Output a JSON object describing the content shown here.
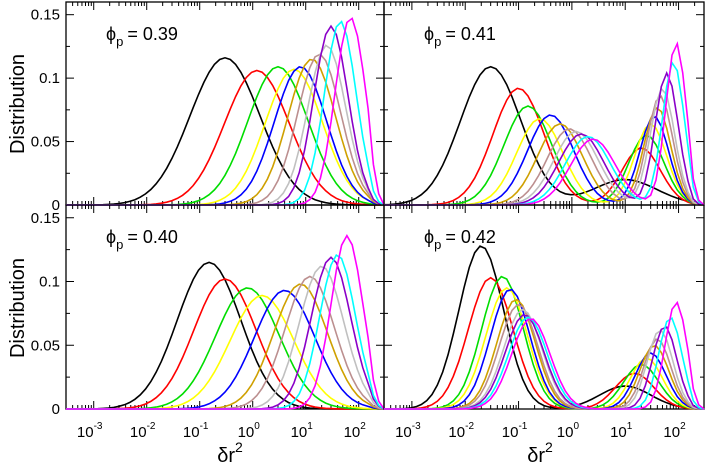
{
  "figure": {
    "ylabel": "Distribution",
    "xlabel_base": "δr",
    "xlabel_exp": "2",
    "phi_symbol": "ϕ",
    "phi_sub": "p"
  },
  "palette": {
    "black": "#000000",
    "red": "#ff0000",
    "green": "#00dd00",
    "yellow": "#ffff00",
    "blue": "#0000ff",
    "gold": "#cfa000",
    "rosy": "#bc8f8f",
    "silver": "#c0c0c0",
    "purple": "#8a00c8",
    "cyan": "#00ffff",
    "magenta": "#ff00ff"
  },
  "chart_data": [
    {
      "type": "line",
      "label_value": "= 0.39",
      "xscale": "log",
      "xlim": [
        0.0003,
        300
      ],
      "ylim": [
        0,
        0.16
      ],
      "yticks": [
        "0",
        "0.05",
        "0.1",
        "0.15"
      ],
      "xticks": [
        "-3",
        "-2",
        "-1",
        "0",
        "1",
        "2"
      ],
      "series": [
        {
          "color": "black",
          "peak_x": 0.3,
          "peak_y": 0.116,
          "width": 1.1
        },
        {
          "color": "red",
          "peak_x": 1.2,
          "peak_y": 0.106,
          "width": 1.02
        },
        {
          "color": "green",
          "peak_x": 3,
          "peak_y": 0.109,
          "width": 0.95
        },
        {
          "color": "yellow",
          "peak_x": 6,
          "peak_y": 0.107,
          "width": 0.9
        },
        {
          "color": "blue",
          "peak_x": 8,
          "peak_y": 0.109,
          "width": 0.82
        },
        {
          "color": "gold",
          "peak_x": 13,
          "peak_y": 0.115,
          "width": 0.75
        },
        {
          "color": "rosy",
          "peak_x": 18,
          "peak_y": 0.119,
          "width": 0.68
        },
        {
          "color": "silver",
          "peak_x": 25,
          "peak_y": 0.126,
          "width": 0.6
        },
        {
          "color": "purple",
          "peak_x": 30,
          "peak_y": 0.141,
          "width": 0.54
        },
        {
          "color": "cyan",
          "peak_x": 45,
          "peak_y": 0.145,
          "width": 0.5
        },
        {
          "color": "magenta",
          "peak_x": 70,
          "peak_y": 0.148,
          "width": 0.48
        }
      ]
    },
    {
      "type": "line",
      "label_value": "= 0.41",
      "xscale": "log",
      "xlim": [
        0.0003,
        300
      ],
      "ylim": [
        0,
        0.16
      ],
      "yticks": [
        "0",
        "0.05",
        "0.1",
        "0.15"
      ],
      "xticks": [
        "-3",
        "-2",
        "-1",
        "0",
        "1",
        "2"
      ],
      "series": [
        {
          "color": "black",
          "peak_x": 0.03,
          "peak_y": 0.109,
          "width": 0.95,
          "peak2_x": 10,
          "peak2_y": 0.02,
          "width2": 1.0
        },
        {
          "color": "red",
          "peak_x": 0.1,
          "peak_y": 0.092,
          "width": 0.8,
          "peak2_x": 20,
          "peak2_y": 0.045,
          "width2": 0.6
        },
        {
          "color": "green",
          "peak_x": 0.15,
          "peak_y": 0.078,
          "width": 0.75,
          "peak2_x": 25,
          "peak2_y": 0.055,
          "width2": 0.55
        },
        {
          "color": "yellow",
          "peak_x": 0.25,
          "peak_y": 0.068,
          "width": 0.72,
          "peak2_x": 30,
          "peak2_y": 0.064,
          "width2": 0.5
        },
        {
          "color": "blue",
          "peak_x": 0.4,
          "peak_y": 0.071,
          "width": 0.72,
          "peak2_x": 35,
          "peak2_y": 0.07,
          "width2": 0.45
        },
        {
          "color": "gold",
          "peak_x": 0.6,
          "peak_y": 0.064,
          "width": 0.7,
          "peak2_x": 40,
          "peak2_y": 0.077,
          "width2": 0.42
        },
        {
          "color": "rosy",
          "peak_x": 0.9,
          "peak_y": 0.06,
          "width": 0.7,
          "peak2_x": 45,
          "peak2_y": 0.086,
          "width2": 0.4
        },
        {
          "color": "silver",
          "peak_x": 1.2,
          "peak_y": 0.058,
          "width": 0.7,
          "peak2_x": 50,
          "peak2_y": 0.092,
          "width2": 0.38
        },
        {
          "color": "purple",
          "peak_x": 1.5,
          "peak_y": 0.056,
          "width": 0.7,
          "peak2_x": 60,
          "peak2_y": 0.104,
          "width2": 0.36
        },
        {
          "color": "cyan",
          "peak_x": 2,
          "peak_y": 0.054,
          "width": 0.7,
          "peak2_x": 80,
          "peak2_y": 0.113,
          "width2": 0.34
        },
        {
          "color": "magenta",
          "peak_x": 2.5,
          "peak_y": 0.052,
          "width": 0.7,
          "peak2_x": 90,
          "peak2_y": 0.128,
          "width2": 0.32
        }
      ]
    },
    {
      "type": "line",
      "label_value": "= 0.40",
      "xscale": "log",
      "xlim": [
        0.0003,
        300
      ],
      "ylim": [
        0,
        0.16
      ],
      "yticks": [
        "0",
        "0.05",
        "0.1",
        "0.15"
      ],
      "xticks": [
        "-3",
        "-2",
        "-1",
        "0",
        "1",
        "2"
      ],
      "series": [
        {
          "color": "black",
          "peak_x": 0.15,
          "peak_y": 0.115,
          "width": 1.0
        },
        {
          "color": "red",
          "peak_x": 0.3,
          "peak_y": 0.102,
          "width": 0.98
        },
        {
          "color": "green",
          "peak_x": 0.8,
          "peak_y": 0.095,
          "width": 1.0
        },
        {
          "color": "yellow",
          "peak_x": 1.5,
          "peak_y": 0.089,
          "width": 1.0
        },
        {
          "color": "blue",
          "peak_x": 4,
          "peak_y": 0.093,
          "width": 0.95
        },
        {
          "color": "gold",
          "peak_x": 8,
          "peak_y": 0.098,
          "width": 0.85
        },
        {
          "color": "rosy",
          "peak_x": 12,
          "peak_y": 0.104,
          "width": 0.78
        },
        {
          "color": "silver",
          "peak_x": 20,
          "peak_y": 0.112,
          "width": 0.7
        },
        {
          "color": "purple",
          "peak_x": 30,
          "peak_y": 0.119,
          "width": 0.62
        },
        {
          "color": "cyan",
          "peak_x": 40,
          "peak_y": 0.121,
          "width": 0.56
        },
        {
          "color": "magenta",
          "peak_x": 60,
          "peak_y": 0.136,
          "width": 0.5
        }
      ]
    },
    {
      "type": "line",
      "label_value": "= 0.42",
      "xscale": "log",
      "xlim": [
        0.0003,
        300
      ],
      "ylim": [
        0,
        0.16
      ],
      "yticks": [
        "0",
        "0.05",
        "0.1",
        "0.15"
      ],
      "xticks": [
        "-3",
        "-2",
        "-1",
        "0",
        "1",
        "2"
      ],
      "series": [
        {
          "color": "black",
          "peak_x": 0.02,
          "peak_y": 0.128,
          "width": 0.7,
          "peak2_x": 10,
          "peak2_y": 0.018,
          "width2": 0.8
        },
        {
          "color": "red",
          "peak_x": 0.03,
          "peak_y": 0.103,
          "width": 0.7,
          "peak2_x": 15,
          "peak2_y": 0.028,
          "width2": 0.6
        },
        {
          "color": "green",
          "peak_x": 0.05,
          "peak_y": 0.104,
          "width": 0.65,
          "peak2_x": 20,
          "peak2_y": 0.035,
          "width2": 0.55
        },
        {
          "color": "yellow",
          "peak_x": 0.06,
          "peak_y": 0.095,
          "width": 0.65,
          "peak2_x": 25,
          "peak2_y": 0.04,
          "width2": 0.5
        },
        {
          "color": "blue",
          "peak_x": 0.07,
          "peak_y": 0.094,
          "width": 0.62,
          "peak2_x": 30,
          "peak2_y": 0.044,
          "width2": 0.48
        },
        {
          "color": "gold",
          "peak_x": 0.09,
          "peak_y": 0.086,
          "width": 0.6,
          "peak2_x": 35,
          "peak2_y": 0.05,
          "width2": 0.45
        },
        {
          "color": "rosy",
          "peak_x": 0.1,
          "peak_y": 0.082,
          "width": 0.6,
          "peak2_x": 40,
          "peak2_y": 0.055,
          "width2": 0.42
        },
        {
          "color": "silver",
          "peak_x": 0.12,
          "peak_y": 0.078,
          "width": 0.6,
          "peak2_x": 45,
          "peak2_y": 0.062,
          "width2": 0.4
        },
        {
          "color": "purple",
          "peak_x": 0.13,
          "peak_y": 0.074,
          "width": 0.6,
          "peak2_x": 55,
          "peak2_y": 0.065,
          "width2": 0.38
        },
        {
          "color": "cyan",
          "peak_x": 0.15,
          "peak_y": 0.072,
          "width": 0.6,
          "peak2_x": 70,
          "peak2_y": 0.072,
          "width2": 0.36
        },
        {
          "color": "magenta",
          "peak_x": 0.17,
          "peak_y": 0.071,
          "width": 0.6,
          "peak2_x": 90,
          "peak2_y": 0.084,
          "width2": 0.34
        }
      ]
    }
  ]
}
